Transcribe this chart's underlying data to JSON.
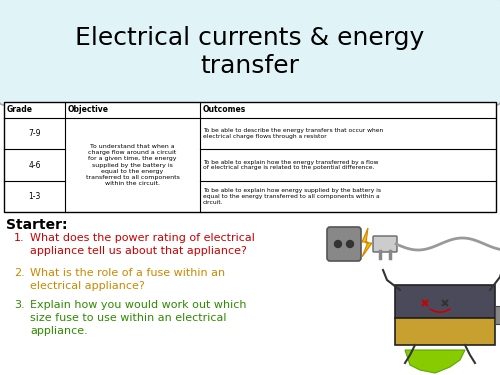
{
  "title": "Electrical currents & energy\ntransfer",
  "title_bg": "#e0f4f8",
  "title_fontsize": 18,
  "table_headers": [
    "Grade",
    "Objective",
    "Outcomes"
  ],
  "table_grades": [
    "7-9",
    "4-6",
    "1-3"
  ],
  "table_objective": "To understand that when a\ncharge flow around a circuit\nfor a given time, the energy\nsupplied by the battery is\nequal to the energy\ntransferred to all components\nwithin the circuit.",
  "table_outcomes": [
    "To be able to describe the energy transfers that occur when\nelectrical charge flows through a resistor",
    "To be able to explain how the energy transferred by a flow\nof electrical charge is related to the potential difference.",
    "To be able to explain how energy supplied by the battery is\nequal to the energy transferred to all components within a\ncircuit."
  ],
  "starter_label": "Starter:",
  "questions": [
    "What does the power rating of electrical\nappliance tell us about that appliance?",
    "What is the role of a fuse within an\nelectrical appliance?",
    "Explain how you would work out which\nsize fuse to use within an electrical\nappliance."
  ],
  "q_colors": [
    "#cc0000",
    "#cc8800",
    "#2e8b00"
  ],
  "bg_color": "#ffffff",
  "border_color": "#000000"
}
